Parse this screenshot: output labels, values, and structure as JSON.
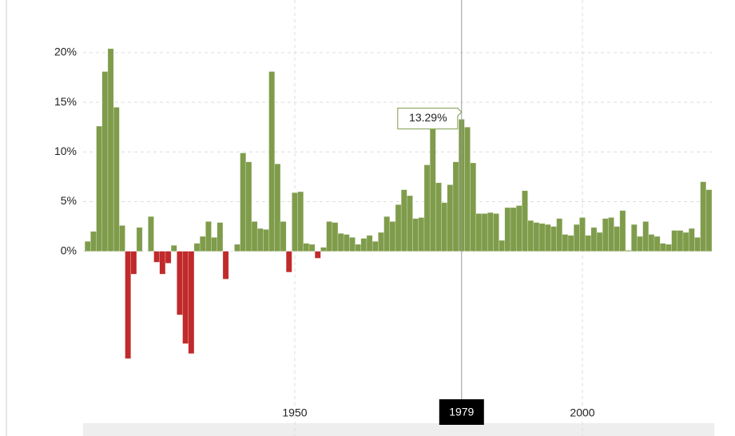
{
  "chart_data": {
    "type": "bar",
    "x": [
      1914,
      1915,
      1916,
      1917,
      1918,
      1919,
      1920,
      1921,
      1922,
      1923,
      1924,
      1925,
      1926,
      1927,
      1928,
      1929,
      1930,
      1931,
      1932,
      1933,
      1934,
      1935,
      1936,
      1937,
      1938,
      1939,
      1940,
      1941,
      1942,
      1943,
      1944,
      1945,
      1946,
      1947,
      1948,
      1949,
      1950,
      1951,
      1952,
      1953,
      1954,
      1955,
      1956,
      1957,
      1958,
      1959,
      1960,
      1961,
      1962,
      1963,
      1964,
      1965,
      1966,
      1967,
      1968,
      1969,
      1970,
      1971,
      1972,
      1973,
      1974,
      1975,
      1976,
      1977,
      1978,
      1979,
      1980,
      1981,
      1982,
      1983,
      1984,
      1985,
      1986,
      1987,
      1988,
      1989,
      1990,
      1991,
      1992,
      1993,
      1994,
      1995,
      1996,
      1997,
      1998,
      1999,
      2000,
      2001,
      2002,
      2003,
      2004,
      2005,
      2006,
      2007,
      2008,
      2009,
      2010,
      2011,
      2012,
      2013,
      2014,
      2015,
      2016,
      2017,
      2018,
      2019,
      2020,
      2021,
      2022
    ],
    "values": [
      1.0,
      2.0,
      12.6,
      18.1,
      20.4,
      14.5,
      2.6,
      -10.8,
      -2.3,
      2.4,
      0,
      3.5,
      -1.1,
      -2.3,
      -1.2,
      0.6,
      -6.4,
      -9.3,
      -10.3,
      0.8,
      1.5,
      3.0,
      1.4,
      2.9,
      -2.8,
      0,
      0.7,
      9.9,
      9.0,
      3.0,
      2.3,
      2.2,
      18.1,
      8.8,
      3.0,
      -2.1,
      5.9,
      6.0,
      0.8,
      0.7,
      -0.7,
      0.4,
      3.0,
      2.9,
      1.8,
      1.7,
      1.4,
      0.7,
      1.3,
      1.6,
      1.0,
      1.9,
      3.5,
      3.0,
      4.7,
      6.2,
      5.6,
      3.3,
      3.4,
      8.7,
      12.3,
      6.9,
      4.9,
      6.7,
      9.0,
      13.29,
      12.5,
      8.9,
      3.8,
      3.8,
      3.9,
      3.8,
      1.1,
      4.4,
      4.4,
      4.6,
      6.1,
      3.1,
      2.9,
      2.8,
      2.7,
      2.5,
      3.3,
      1.7,
      1.6,
      2.7,
      3.4,
      1.6,
      2.4,
      1.9,
      3.3,
      3.4,
      2.5,
      4.1,
      0.1,
      2.7,
      1.5,
      3.0,
      1.7,
      1.5,
      0.8,
      0.7,
      2.1,
      2.1,
      1.9,
      2.3,
      1.4,
      7.0,
      6.2
    ],
    "colors": {
      "positive": "#7f9c4b",
      "negative": "#c12a2a"
    },
    "xlim": [
      1913.2,
      2022.5
    ],
    "xticks": [
      1950,
      2000
    ],
    "ylim": [
      -15.3,
      25.3
    ],
    "yticks": [
      {
        "value": 0,
        "label": "0%"
      },
      {
        "value": 5,
        "label": "5%"
      },
      {
        "value": 10,
        "label": "10%"
      },
      {
        "value": 15,
        "label": "15%"
      },
      {
        "value": 20,
        "label": "20%"
      }
    ],
    "grid": true,
    "highlight": {
      "x": {
        "value": 1979,
        "label": "1979"
      },
      "label": "13.29%"
    }
  }
}
